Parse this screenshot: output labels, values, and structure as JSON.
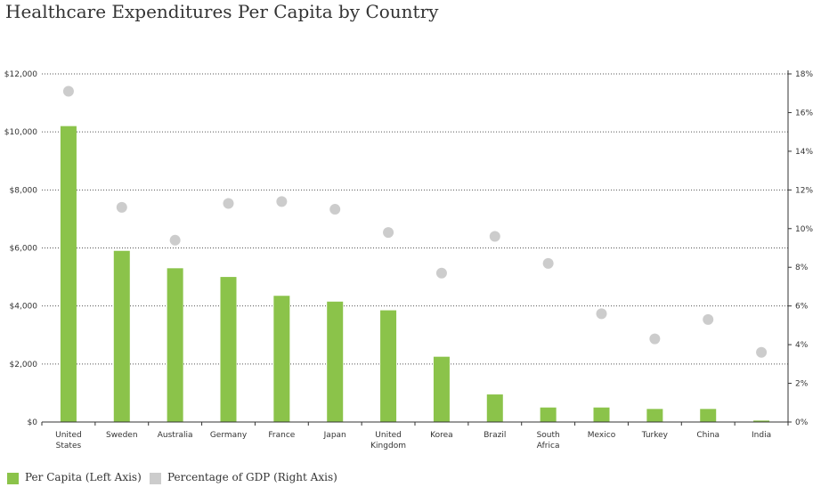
{
  "title": "Healthcare Expenditures Per Capita by Country",
  "colors": {
    "bar": "#8bc34a",
    "dot": "#cccccc",
    "axis": "#333333",
    "grid": "#555555"
  },
  "legend": {
    "items": [
      {
        "label": "Per Capita (Left Axis)",
        "color": "#8bc34a"
      },
      {
        "label": "Percentage of GDP (Right Axis)",
        "color": "#cccccc"
      }
    ]
  },
  "chart_data": {
    "type": "bar",
    "title": "Healthcare Expenditures Per Capita by Country",
    "categories": [
      [
        "United",
        "States"
      ],
      [
        "Sweden"
      ],
      [
        "Australia"
      ],
      [
        "Germany"
      ],
      [
        "France"
      ],
      [
        "Japan"
      ],
      [
        "United",
        "Kingdom"
      ],
      [
        "Korea"
      ],
      [
        "Brazil"
      ],
      [
        "South",
        "Africa"
      ],
      [
        "Mexico"
      ],
      [
        "Turkey"
      ],
      [
        "China"
      ],
      [
        "India"
      ]
    ],
    "series": [
      {
        "name": "Per Capita (Left Axis)",
        "type": "bar",
        "axis": "left",
        "values": [
          10200,
          5900,
          5300,
          5000,
          4350,
          4150,
          3850,
          2250,
          950,
          500,
          500,
          450,
          450,
          50
        ]
      },
      {
        "name": "Percentage of GDP (Right Axis)",
        "type": "scatter",
        "axis": "right",
        "values": [
          17.1,
          11.1,
          9.4,
          11.3,
          11.4,
          11.0,
          9.8,
          7.7,
          9.6,
          8.2,
          5.6,
          4.3,
          5.3,
          3.6
        ]
      }
    ],
    "left_axis": {
      "ylim": [
        0,
        12000
      ],
      "ticks": [
        0,
        2000,
        4000,
        6000,
        8000,
        10000,
        12000
      ],
      "tick_labels": [
        "$0",
        "$2,000",
        "$4,000",
        "$6,000",
        "$8,000",
        "$10,000",
        "$12,000"
      ]
    },
    "right_axis": {
      "ylim": [
        0,
        18
      ],
      "ticks": [
        0,
        2,
        4,
        6,
        8,
        10,
        12,
        14,
        16,
        18
      ],
      "tick_labels": [
        "0%",
        "2%",
        "4%",
        "6%",
        "8%",
        "10%",
        "12%",
        "14%",
        "16%",
        "18%"
      ]
    },
    "grid": "dotted horizontal at left-axis ticks",
    "legend_position": "bottom-left"
  }
}
